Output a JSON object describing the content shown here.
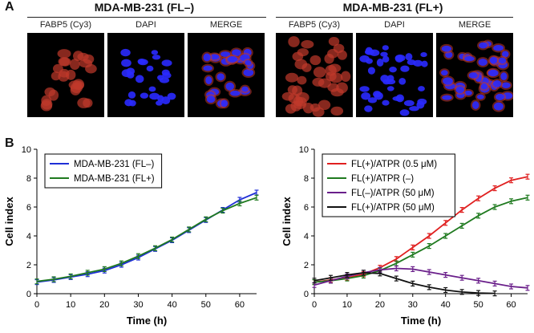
{
  "panel_a": {
    "letter": "A",
    "groups": [
      {
        "title": "MDA-MB-231 (FL–)",
        "labels": [
          "FABP5 (Cy3)",
          "DAPI",
          "MERGE"
        ]
      },
      {
        "title": "MDA-MB-231 (FL+)",
        "labels": [
          "FABP5 (Cy3)",
          "DAPI",
          "MERGE"
        ]
      }
    ],
    "colors": {
      "cy3": "#c0392b",
      "dapi": "#2a2aff"
    }
  },
  "panel_b": {
    "letter": "B"
  },
  "chart_data": [
    {
      "type": "line",
      "xlabel": "Time (h)",
      "ylabel": "Cell index",
      "xlim": [
        0,
        65
      ],
      "ylim": [
        0,
        10
      ],
      "xticks": [
        "0",
        "10",
        "20",
        "30",
        "40",
        "50",
        "60"
      ],
      "yticks": [
        "0",
        "2",
        "4",
        "6",
        "8",
        "10"
      ],
      "legend": "top-left",
      "series": [
        {
          "name": "MDA-MB-231 (FL–)",
          "color": "#1f2fd6",
          "x": [
            0,
            5,
            10,
            15,
            20,
            25,
            30,
            35,
            40,
            45,
            50,
            55,
            60,
            65
          ],
          "y": [
            0.8,
            0.95,
            1.15,
            1.35,
            1.6,
            2.0,
            2.5,
            3.1,
            3.7,
            4.4,
            5.1,
            5.8,
            6.5,
            7.0
          ]
        },
        {
          "name": "MDA-MB-231 (FL+)",
          "color": "#1f7a1f",
          "x": [
            0,
            5,
            10,
            15,
            20,
            25,
            30,
            35,
            40,
            45,
            50,
            55,
            60,
            65
          ],
          "y": [
            0.85,
            1.0,
            1.2,
            1.45,
            1.7,
            2.1,
            2.6,
            3.15,
            3.75,
            4.45,
            5.15,
            5.75,
            6.25,
            6.65
          ]
        }
      ]
    },
    {
      "type": "line",
      "xlabel": "Time (h)",
      "ylabel": "Cell index",
      "xlim": [
        0,
        65
      ],
      "ylim": [
        0,
        10
      ],
      "xticks": [
        "0",
        "10",
        "20",
        "30",
        "40",
        "50",
        "60"
      ],
      "yticks": [
        "0",
        "2",
        "4",
        "6",
        "8",
        "10"
      ],
      "legend": "top-left",
      "series": [
        {
          "name": "FL(+)/ATPR (0.5 μM)",
          "color": "#e02020",
          "x": [
            0,
            5,
            10,
            15,
            20,
            25,
            30,
            35,
            40,
            45,
            50,
            55,
            60,
            65
          ],
          "y": [
            0.8,
            0.95,
            1.1,
            1.35,
            1.8,
            2.4,
            3.2,
            4.0,
            4.9,
            5.8,
            6.6,
            7.3,
            7.85,
            8.1
          ]
        },
        {
          "name": "FL(+)/ATPR (–)",
          "color": "#1f7a1f",
          "x": [
            0,
            5,
            10,
            15,
            20,
            25,
            30,
            35,
            40,
            45,
            50,
            55,
            60,
            65
          ],
          "y": [
            0.8,
            0.9,
            1.05,
            1.25,
            1.6,
            2.1,
            2.7,
            3.3,
            4.0,
            4.7,
            5.4,
            6.0,
            6.4,
            6.65
          ]
        },
        {
          "name": "FL(–)/ATPR (50 μM)",
          "color": "#6a1f8a",
          "x": [
            0,
            5,
            10,
            15,
            20,
            25,
            30,
            35,
            40,
            45,
            50,
            55,
            60,
            65
          ],
          "y": [
            0.6,
            0.9,
            1.2,
            1.45,
            1.65,
            1.75,
            1.7,
            1.5,
            1.3,
            1.1,
            0.9,
            0.7,
            0.5,
            0.4
          ]
        },
        {
          "name": "FL(+)/ATPR (50 μM)",
          "color": "#111111",
          "x": [
            0,
            5,
            10,
            15,
            20,
            25,
            30,
            35,
            40,
            45,
            50,
            55
          ],
          "y": [
            0.9,
            1.1,
            1.3,
            1.45,
            1.4,
            1.05,
            0.7,
            0.45,
            0.25,
            0.12,
            0.05,
            0.02
          ]
        }
      ]
    }
  ]
}
